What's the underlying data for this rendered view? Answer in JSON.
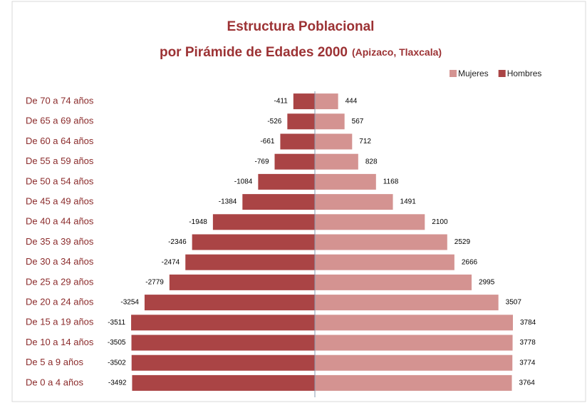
{
  "chart_data": {
    "type": "pyramid",
    "title": "Estructura Poblacional",
    "title_line2": "por Pirámide de Edades 2000",
    "subtitle": "(Apizaco, Tlaxcala)",
    "categories": [
      "De 70 a 74 años",
      "De 65 a 69 años",
      "De 60 a 64 años",
      "De 55 a 59 años",
      "De 50 a 54 años",
      "De 45 a 49 años",
      "De 40 a 44 años",
      "De 35 a 39 años",
      "De 30 a 34 años",
      "De 25 a 29 años",
      "De 20 a 24 años",
      "De 15 a 19 años",
      "De 10 a 14 años",
      "De 5 a 9 años",
      "De 0 a 4 años"
    ],
    "series": [
      {
        "name": "Mujeres",
        "color": "#d49391",
        "values": [
          444,
          567,
          712,
          828,
          1168,
          1491,
          2100,
          2529,
          2666,
          2995,
          3507,
          3784,
          3778,
          3774,
          3764
        ]
      },
      {
        "name": "Hombres",
        "color": "#aa4445",
        "values": [
          -411,
          -526,
          -661,
          -769,
          -1084,
          -1384,
          -1948,
          -2346,
          -2474,
          -2779,
          -3254,
          -3511,
          -3505,
          -3502,
          -3492
        ]
      }
    ],
    "legend": "top-right"
  }
}
